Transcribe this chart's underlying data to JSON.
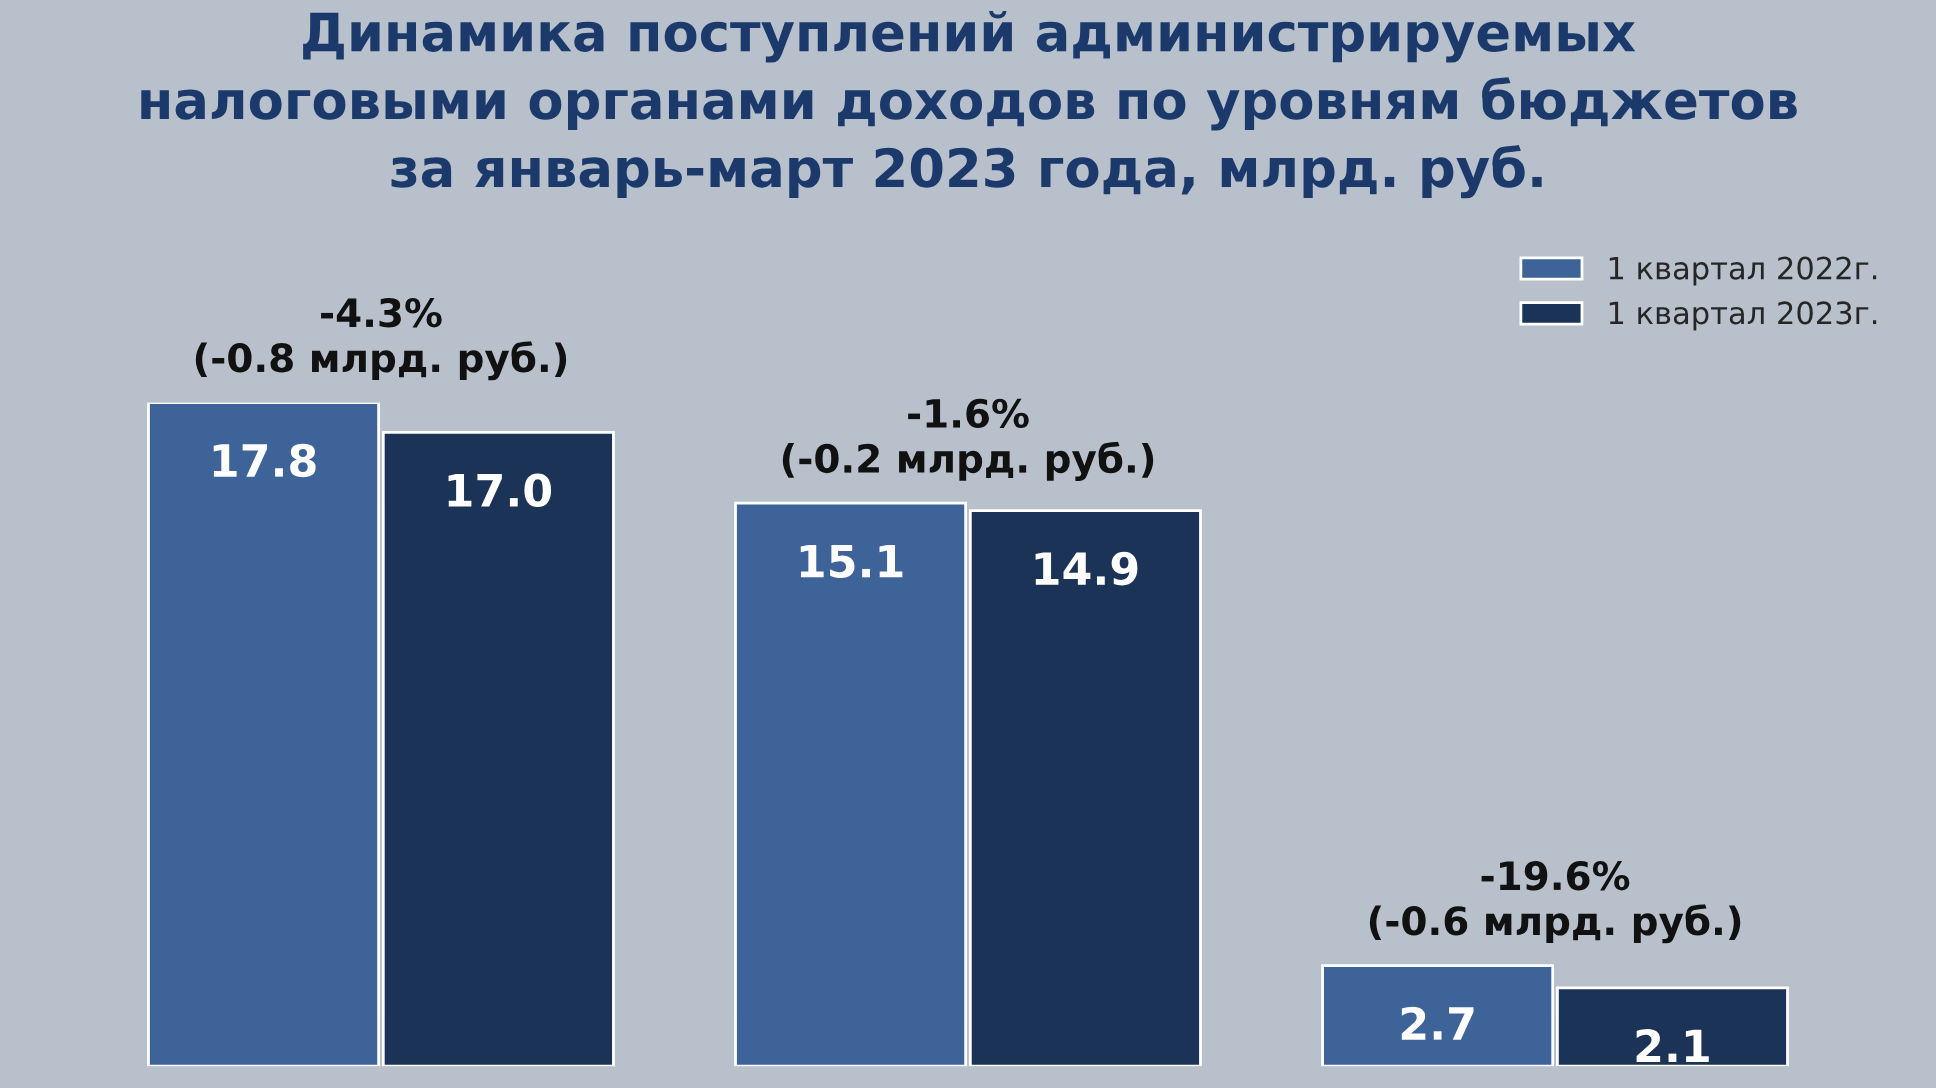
{
  "chart_data": {
    "type": "bar",
    "title": "Динамика поступлений администрируемых\nналоговыми органами доходов по уровням бюджетов\nза январь-март 2023 года, млрд. руб.",
    "categories": [
      null,
      null,
      null
    ],
    "series": [
      {
        "name": "1 квартал 2022г.",
        "color": "#3d6399",
        "values": [
          17.8,
          15.1,
          2.7
        ],
        "value_labels": [
          "17.8",
          "15.1",
          "2.7"
        ]
      },
      {
        "name": "1 квартал 2023г.",
        "color": "#1c3358",
        "values": [
          17.0,
          14.9,
          2.1
        ],
        "value_labels": [
          "17.0",
          "14.9",
          "2.1"
        ]
      }
    ],
    "legend": "top right",
    "grid": false,
    "tick_labels": false,
    "annotations": [
      "-4.3%\n(-0.8 млрд. руб.)",
      "-1.6%\n(-0.2 млрд. руб.)",
      "-19.6%\n(-0.6 млрд. руб.)"
    ]
  }
}
